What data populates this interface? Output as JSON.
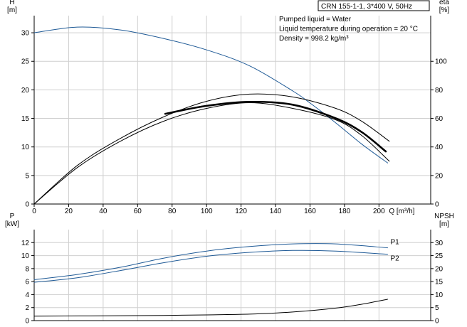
{
  "chart_data": [
    {
      "type": "line",
      "title": "CRN 155-1-1, 3*400 V, 50Hz",
      "notes": [
        "Pumped liquid = Water",
        "Liquid temperature during operation = 20 °C",
        "Density = 998.2 kg/m³"
      ],
      "left_axis": {
        "label": "H",
        "unit": "[m]",
        "ticks": [
          0,
          5,
          10,
          15,
          20,
          25,
          30
        ],
        "range": [
          0,
          33
        ]
      },
      "right_axis": {
        "label": "eta",
        "unit": "[%]",
        "ticks": [
          0,
          20,
          40,
          60,
          80,
          100
        ],
        "range": [
          0,
          132
        ]
      },
      "x_axis": {
        "label": "Q [m³/h]",
        "ticks": [
          0,
          20,
          40,
          60,
          80,
          100,
          120,
          140,
          160,
          180,
          200
        ],
        "range": [
          0,
          230
        ]
      },
      "grid": true,
      "series": [
        {
          "axis": "left",
          "color": "#1f5a96",
          "x": [
            0,
            25,
            50,
            75,
            100,
            125,
            150,
            160,
            175,
            190,
            205
          ],
          "y": [
            30,
            31,
            30.5,
            29,
            27,
            24.2,
            19.8,
            17.7,
            14.2,
            10.5,
            7.2
          ]
        },
        {
          "axis": "right",
          "color": "#000000",
          "x": [
            0,
            25,
            50,
            75,
            100,
            125,
            150,
            175,
            190,
            206
          ],
          "y": [
            0,
            27,
            46,
            61,
            72,
            77,
            75,
            67,
            58,
            44
          ]
        },
        {
          "axis": "right",
          "color": "#000000",
          "x": [
            0,
            25,
            50,
            75,
            100,
            125,
            150,
            175,
            190,
            206
          ],
          "y": [
            0,
            25.5,
            44,
            58,
            67,
            71,
            67,
            59,
            48,
            30
          ]
        },
        {
          "axis": "left",
          "color": "#000000",
          "bold": true,
          "x": [
            76,
            100,
            125,
            150,
            175,
            190,
            204
          ],
          "y": [
            15.8,
            17.2,
            17.9,
            17.4,
            15,
            12.6,
            9.2
          ]
        }
      ]
    },
    {
      "type": "line",
      "left_axis": {
        "label": "P",
        "unit": "[kW]",
        "ticks": [
          0,
          2,
          4,
          6,
          8,
          10,
          12
        ],
        "range": [
          0,
          14
        ]
      },
      "right_axis": {
        "label": "NPSH",
        "unit": "[m]",
        "ticks": [
          0,
          5,
          10,
          15,
          20,
          25,
          30
        ],
        "range": [
          0,
          35
        ]
      },
      "x_axis": {
        "range": [
          0,
          230
        ]
      },
      "grid": true,
      "series": [
        {
          "name": "P1",
          "axis": "left",
          "color": "#1f5a96",
          "x": [
            0,
            25,
            50,
            75,
            100,
            125,
            150,
            175,
            205
          ],
          "y": [
            6.3,
            7.1,
            8.2,
            9.6,
            10.7,
            11.4,
            11.8,
            11.8,
            11.2
          ]
        },
        {
          "name": "P2",
          "axis": "left",
          "color": "#1f5a96",
          "x": [
            0,
            25,
            50,
            75,
            100,
            125,
            150,
            175,
            205
          ],
          "y": [
            5.9,
            6.6,
            7.7,
            8.9,
            9.9,
            10.5,
            10.8,
            10.7,
            10.2
          ]
        },
        {
          "axis": "right",
          "color": "#000000",
          "x": [
            0,
            50,
            75,
            100,
            125,
            150,
            175,
            190,
            205
          ],
          "y": [
            1.7,
            1.9,
            2.0,
            2.2,
            2.5,
            3.3,
            4.8,
            6.3,
            8.2
          ]
        }
      ]
    }
  ]
}
